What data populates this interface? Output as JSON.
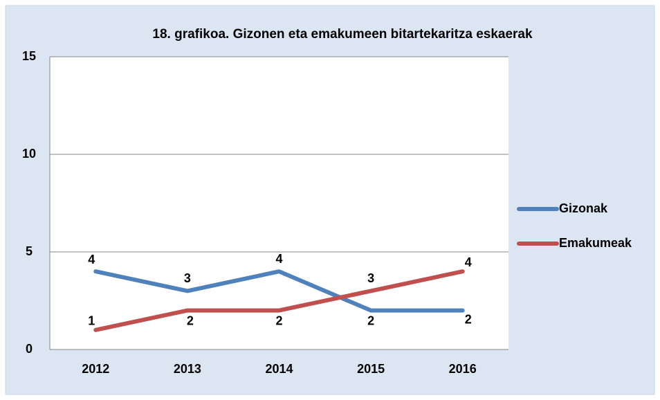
{
  "chart_data": {
    "type": "line",
    "title": "18. grafikoa. Gizonen eta emakumeen bitartekaritza eskaerak",
    "categories": [
      "2012",
      "2013",
      "2014",
      "2015",
      "2016"
    ],
    "series": [
      {
        "name": "Gizonak",
        "color": "#4f81bd",
        "values": [
          4,
          3,
          4,
          2,
          2
        ]
      },
      {
        "name": "Emakumeak",
        "color": "#c0504d",
        "values": [
          1,
          2,
          2,
          3,
          4
        ]
      }
    ],
    "ylim": [
      0,
      15
    ],
    "yticks": [
      0,
      5,
      10,
      15
    ],
    "grid": true,
    "legend": "right"
  }
}
